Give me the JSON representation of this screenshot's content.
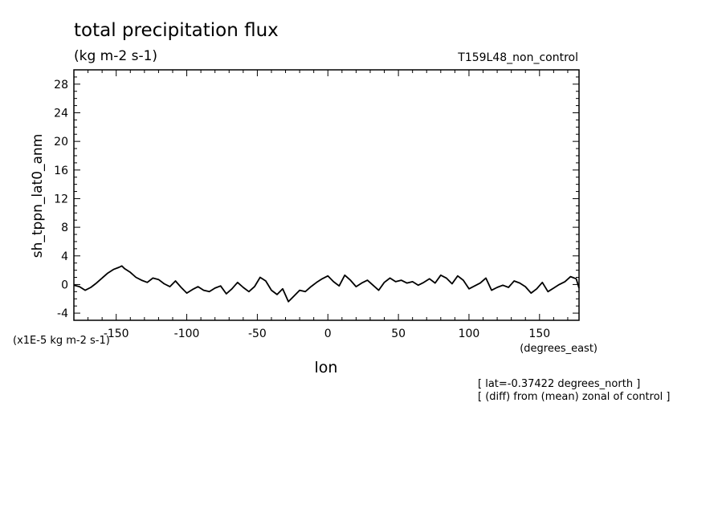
{
  "chart_data": {
    "type": "line",
    "title": "total precipitation flux",
    "units": "(kg m-2 s-1)",
    "run_label": "T159L48_non_control",
    "ylabel": "sh_tppn_lat0_anm",
    "yscale_note": "(x1E-5 kg m-2 s-1)",
    "xlabel": "lon",
    "xunits": "(degrees_east)",
    "notes": [
      "[ lat=-0.37422 degrees_north ]",
      "[ (diff) from (mean) zonal of control ]"
    ],
    "xlim": [
      -180,
      178
    ],
    "ylim": [
      -5,
      30
    ],
    "x_major_ticks": [
      -150,
      -100,
      -50,
      0,
      50,
      100,
      150
    ],
    "x_tick_labels": [
      "-150",
      "-100",
      "-50",
      "0",
      "50",
      "100",
      "150"
    ],
    "y_major_ticks": [
      -4,
      0,
      4,
      8,
      12,
      16,
      20,
      24,
      28
    ],
    "y_tick_labels": [
      "-4",
      "0",
      "4",
      "8",
      "12",
      "16",
      "20",
      "24",
      "28"
    ],
    "grid": false,
    "series": [
      {
        "x": [
          -180,
          -176,
          -172,
          -168,
          -164,
          -160,
          -156,
          -152,
          -148,
          -146,
          -144,
          -140,
          -136,
          -132,
          -128,
          -124,
          -120,
          -116,
          -112,
          -108,
          -104,
          -100,
          -96,
          -92,
          -88,
          -84,
          -80,
          -76,
          -72,
          -68,
          -64,
          -60,
          -56,
          -52,
          -48,
          -44,
          -40,
          -36,
          -32,
          -28,
          -24,
          -20,
          -16,
          -12,
          -8,
          -4,
          0,
          4,
          8,
          12,
          16,
          20,
          24,
          28,
          32,
          36,
          40,
          44,
          48,
          52,
          56,
          60,
          64,
          68,
          72,
          76,
          80,
          84,
          88,
          92,
          96,
          100,
          104,
          108,
          112,
          116,
          120,
          124,
          128,
          132,
          136,
          140,
          144,
          148,
          152,
          156,
          160,
          164,
          168,
          172,
          176,
          178
        ],
        "y": [
          -0.1,
          -0.3,
          -0.8,
          -0.4,
          0.2,
          0.9,
          1.6,
          2.1,
          2.4,
          2.6,
          2.2,
          1.7,
          1.0,
          0.6,
          0.3,
          0.9,
          0.7,
          0.1,
          -0.3,
          0.5,
          -0.4,
          -1.2,
          -0.7,
          -0.3,
          -0.8,
          -1.0,
          -0.5,
          -0.2,
          -1.3,
          -0.6,
          0.3,
          -0.4,
          -1.0,
          -0.3,
          1.0,
          0.5,
          -0.8,
          -1.4,
          -0.6,
          -2.4,
          -1.6,
          -0.8,
          -1.0,
          -0.3,
          0.3,
          0.8,
          1.2,
          0.4,
          -0.2,
          1.3,
          0.6,
          -0.3,
          0.2,
          0.6,
          -0.1,
          -0.8,
          0.3,
          0.9,
          0.4,
          0.6,
          0.2,
          0.4,
          -0.1,
          0.3,
          0.8,
          0.2,
          1.3,
          0.9,
          0.1,
          1.2,
          0.6,
          -0.6,
          -0.2,
          0.2,
          0.9,
          -0.8,
          -0.4,
          -0.1,
          -0.4,
          0.5,
          0.2,
          -0.3,
          -1.2,
          -0.6,
          0.3,
          -1.0,
          -0.5,
          0.0,
          0.4,
          1.1,
          0.8,
          -0.5
        ]
      }
    ]
  }
}
